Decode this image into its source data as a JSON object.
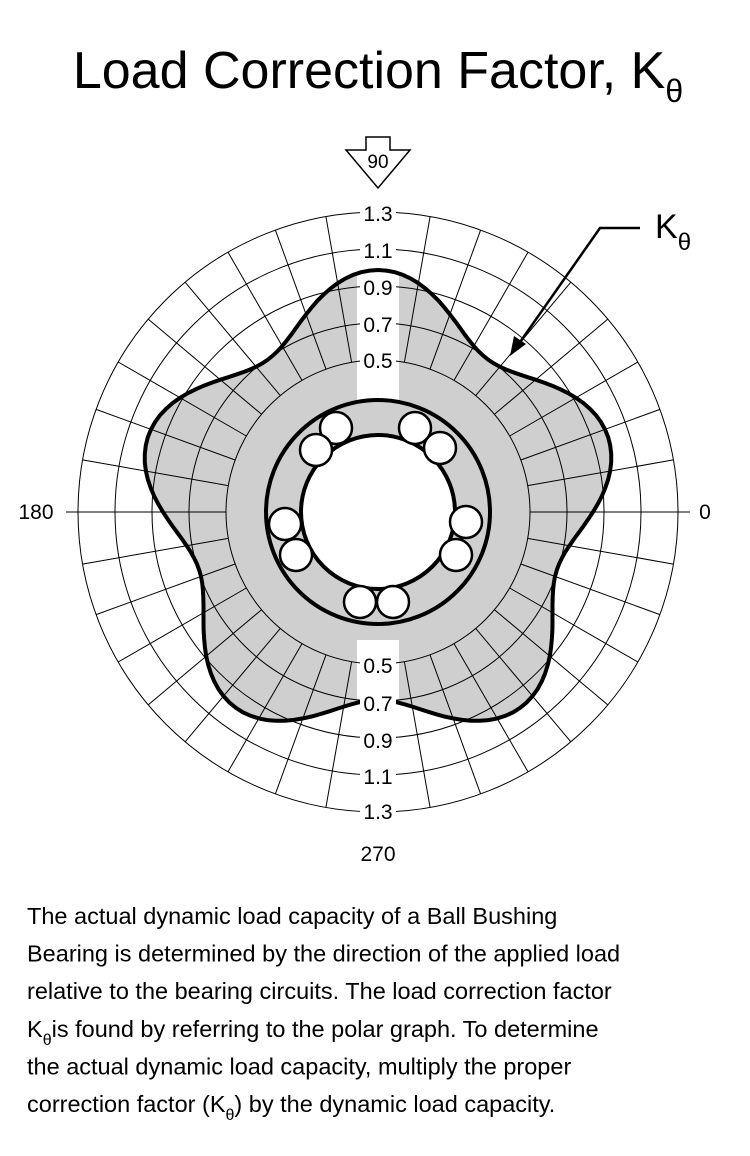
{
  "header": {
    "title": "Load Correction Factor, K",
    "title_subscript": "θ"
  },
  "graph": {
    "angle_labels": {
      "top": "90",
      "right": "0",
      "left": "180",
      "bottom": "270"
    },
    "radial_labels_top": [
      "1.3",
      "1.1",
      "0.9",
      "0.7",
      "0.5"
    ],
    "radial_labels_bottom": [
      "0.5",
      "0.7",
      "0.9",
      "1.1",
      "1.3"
    ],
    "curve_label": "K",
    "curve_label_subscript": "θ"
  },
  "paragraph": [
    [
      "The actual dynamic load capacity of a Ball Bushing"
    ],
    [
      "Bearing is determined by the direction of the applied load"
    ],
    [
      "relative to the bearing circuits. The load correction factor"
    ],
    [
      "K",
      "θ",
      "is found by referring to the polar graph. To determine"
    ],
    [
      "the actual dynamic load capacity, multiply the proper"
    ],
    [
      "correction factor (K",
      "θ",
      ") by the dynamic load capacity."
    ]
  ]
}
